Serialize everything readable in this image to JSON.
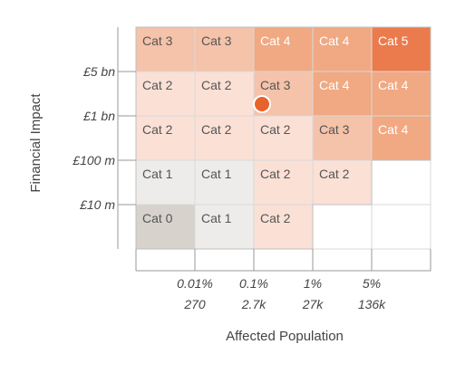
{
  "chart_data": {
    "type": "heatmap",
    "title": "",
    "xlabel": "Affected Population",
    "ylabel": "Financial Impact",
    "x_ticks": [
      {
        "pct": "0.01%",
        "count": "270"
      },
      {
        "pct": "0.1%",
        "count": "2.7k"
      },
      {
        "pct": "1%",
        "count": "27k"
      },
      {
        "pct": "5%",
        "count": "136k"
      }
    ],
    "y_ticks": [
      "£5 bn",
      "£1 bn",
      "£100 m",
      "£10 m"
    ],
    "rows": [
      [
        "Cat 3",
        "Cat 3",
        "Cat 4",
        "Cat 4",
        "Cat 5"
      ],
      [
        "Cat 2",
        "Cat 2",
        "Cat 3",
        "Cat 4",
        "Cat 4"
      ],
      [
        "Cat 2",
        "Cat 2",
        "Cat 2",
        "Cat 3",
        "Cat 4"
      ],
      [
        "Cat 1",
        "Cat 1",
        "Cat 2",
        "Cat 2",
        ""
      ],
      [
        "Cat 0",
        "Cat 1",
        "Cat 2",
        "",
        ""
      ]
    ],
    "marker": {
      "row": 1,
      "col": 2,
      "color": "#e8632b"
    },
    "category_colors": {
      "Cat 0": "#d7d3cc",
      "Cat 1": "#eeecea",
      "Cat 2": "#fbe0d6",
      "Cat 3": "#f5c2aa",
      "Cat 4": "#f0a983",
      "Cat 5": "#eb7a4c"
    },
    "category_text_colors": {
      "Cat 0": "#555555",
      "Cat 1": "#555555",
      "Cat 2": "#555555",
      "Cat 3": "#555555",
      "Cat 4": "#ffffff",
      "Cat 5": "#ffffff"
    }
  }
}
